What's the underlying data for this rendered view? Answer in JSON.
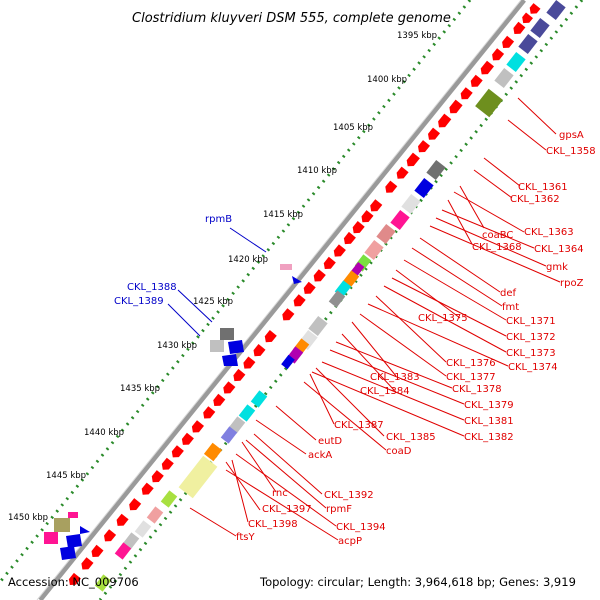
{
  "title": "Clostridium kluyveri DSM 555, complete genome",
  "accession": "Accession: NC_009706",
  "summary": "Topology: circular; Length: 3,964,618 bp; Genes: 3,919",
  "colors": {
    "gene_red": "#ff0000",
    "tick_green": "#2a8a2a",
    "label_red": "#e00000",
    "label_blue": "#0000c8",
    "backbone": "#9a9a9a"
  },
  "ruler": [
    {
      "label": "1395 kbp"
    },
    {
      "label": "1400 kbp"
    },
    {
      "label": "1405 kbp"
    },
    {
      "label": "1410 kbp"
    },
    {
      "label": "1415 kbp"
    },
    {
      "label": "1420 kbp"
    },
    {
      "label": "1425 kbp"
    },
    {
      "label": "1430 kbp"
    },
    {
      "label": "1435 kbp"
    },
    {
      "label": "1440 kbp"
    },
    {
      "label": "1445 kbp"
    },
    {
      "label": "1450 kbp"
    }
  ],
  "red_labels": [
    "gpsA",
    "CKL_1358",
    "CKL_1361",
    "CKL_1362",
    "coaBC",
    "CKL_1363",
    "CKL_1368",
    "CKL_1364",
    "gmk",
    "rpoZ",
    "def",
    "fmt",
    "CKL_1375",
    "CKL_1371",
    "CKL_1372",
    "CKL_1373",
    "CKL_1376",
    "CKL_1374",
    "CKL_1383",
    "CKL_1377",
    "CKL_1384",
    "CKL_1378",
    "CKL_1379",
    "CKL_1387",
    "CKL_1381",
    "CKL_1385",
    "CKL_1382",
    "eutD",
    "coaD",
    "ackA",
    "rnc",
    "CKL_1392",
    "rpmF",
    "CKL_1397",
    "CKL_1398",
    "CKL_1394",
    "acpP",
    "ftsY"
  ],
  "blue_labels": [
    "rpmB",
    "CKL_1388",
    "CKL_1389"
  ]
}
